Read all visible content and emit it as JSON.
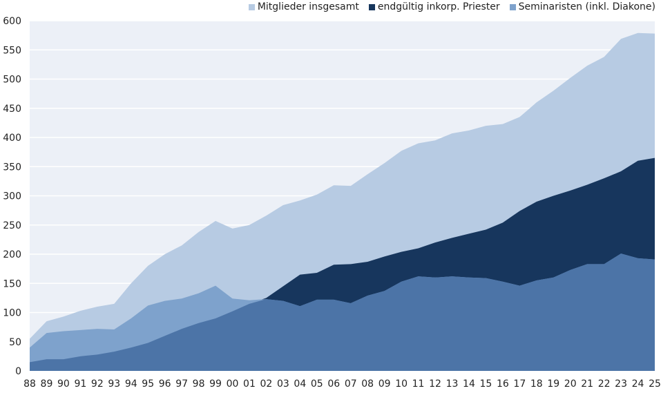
{
  "chart_data": {
    "type": "area",
    "title": "",
    "xlabel": "",
    "ylabel": "",
    "ylim": [
      0,
      600
    ],
    "yticks": [
      0,
      50,
      100,
      150,
      200,
      250,
      300,
      350,
      400,
      450,
      500,
      550,
      600
    ],
    "grid": "horizontal",
    "legend_position": "top-right",
    "plot_background": "#ecf0f7",
    "categories": [
      "88",
      "89",
      "90",
      "91",
      "92",
      "93",
      "94",
      "95",
      "96",
      "97",
      "98",
      "99",
      "00",
      "01",
      "02",
      "03",
      "04",
      "05",
      "06",
      "07",
      "08",
      "09",
      "10",
      "11",
      "12",
      "13",
      "14",
      "15",
      "16",
      "17",
      "18",
      "19",
      "20",
      "21",
      "22",
      "23",
      "24",
      "25"
    ],
    "series": [
      {
        "name": "Mitglieder insgesamt",
        "color": "#b7cbe3",
        "values": [
          55,
          85,
          93,
          103,
          110,
          115,
          150,
          180,
          200,
          215,
          238,
          257,
          244,
          250,
          266,
          284,
          292,
          302,
          318,
          317,
          337,
          356,
          377,
          390,
          395,
          407,
          412,
          420,
          423,
          435,
          460,
          480,
          502,
          523,
          538,
          569,
          579,
          578
        ]
      },
      {
        "name": "endgültig inkorp. Priester",
        "color": "#17365d",
        "values": [
          15,
          20,
          20,
          25,
          28,
          33,
          40,
          48,
          60,
          72,
          82,
          90,
          102,
          115,
          125,
          145,
          165,
          168,
          182,
          183,
          187,
          196,
          204,
          210,
          220,
          228,
          235,
          242,
          254,
          274,
          290,
          300,
          309,
          319,
          330,
          342,
          360,
          365
        ]
      },
      {
        "name": "Seminaristen (inkl. Diakone)",
        "color": "#7ea2cc",
        "values": [
          40,
          65,
          68,
          70,
          72,
          71,
          90,
          112,
          120,
          124,
          133,
          146,
          124,
          121,
          123,
          120,
          111,
          122,
          122,
          116,
          129,
          137,
          153,
          162,
          160,
          162,
          160,
          159,
          153,
          146,
          155,
          160,
          173,
          183,
          183,
          201,
          193,
          191
        ]
      }
    ],
    "overlap_color": "#4c74a7"
  }
}
